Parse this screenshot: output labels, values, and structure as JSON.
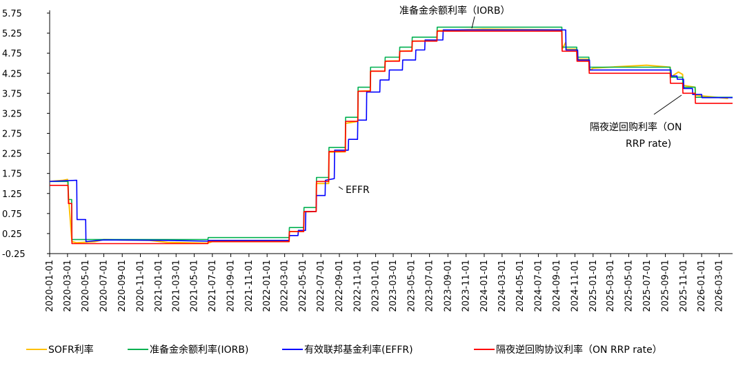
{
  "chart_data": {
    "type": "line",
    "title": "",
    "xlabel": "",
    "ylabel": "",
    "ylim": [
      -0.25,
      5.75
    ],
    "yticks": [
      "5.75",
      "5.25",
      "4.75",
      "4.25",
      "3.75",
      "3.25",
      "2.75",
      "2.25",
      "1.75",
      "1.25",
      "0.75",
      "0.25",
      "-0.25"
    ],
    "xticks": [
      "2020-01-01",
      "2020-03-01",
      "2020-05-01",
      "2020-07-01",
      "2020-09-01",
      "2020-11-01",
      "2021-01-01",
      "2021-03-01",
      "2021-05-01",
      "2021-07-01",
      "2021-09-01",
      "2021-11-01",
      "2022-01-01",
      "2022-03-01",
      "2022-05-01",
      "2022-07-01",
      "2022-09-01",
      "2022-11-01",
      "2023-01-01",
      "2023-03-01",
      "2023-05-01",
      "2023-07-01",
      "2023-09-01",
      "2023-11-01",
      "2024-01-01",
      "2024-03-01",
      "2024-05-01",
      "2024-07-01",
      "2024-09-01",
      "2024-11-01",
      "2025-01-01",
      "2025-03-01",
      "2025-05-01",
      "2025-07-01",
      "2025-09-01",
      "2025-11-01",
      "2026-01-01",
      "2026-03-01"
    ],
    "x_range": [
      "2020-01-01",
      "2026-04-15"
    ],
    "grid": false,
    "legend_position": "bottom",
    "annotations": [
      {
        "text": "准备金余额利率（IORB）",
        "series": "IORB",
        "x": "2023-10-01",
        "y": 5.4
      },
      {
        "text": "EFFR",
        "series": "EFFR",
        "x": "2022-09-01",
        "y": 1.6
      },
      {
        "text": "隔夜逆回购利率（ON",
        "series": "ON RRP",
        "x": "2025-11-01",
        "y": 3.75
      },
      {
        "text": "RRP rate)",
        "series": "ON RRP",
        "x": "",
        "y": null
      }
    ],
    "series": [
      {
        "key": "SOFR",
        "name": "SOFR利率",
        "color": "#ffc000",
        "points": [
          [
            "2020-01-01",
            1.55
          ],
          [
            "2020-02-15",
            1.58
          ],
          [
            "2020-03-01",
            1.6
          ],
          [
            "2020-03-05",
            1.1
          ],
          [
            "2020-03-16",
            0.05
          ],
          [
            "2020-04-01",
            0.02
          ],
          [
            "2020-06-01",
            0.05
          ],
          [
            "2020-07-01",
            0.1
          ],
          [
            "2020-09-01",
            0.09
          ],
          [
            "2020-12-01",
            0.08
          ],
          [
            "2021-02-01",
            0.03
          ],
          [
            "2021-06-15",
            0.01
          ],
          [
            "2021-07-01",
            0.05
          ],
          [
            "2022-03-16",
            0.05
          ],
          [
            "2022-03-17",
            0.3
          ],
          [
            "2022-05-04",
            0.3
          ],
          [
            "2022-05-05",
            0.79
          ],
          [
            "2022-06-15",
            0.8
          ],
          [
            "2022-06-16",
            1.5
          ],
          [
            "2022-07-27",
            1.5
          ],
          [
            "2022-07-28",
            2.28
          ],
          [
            "2022-09-21",
            2.29
          ],
          [
            "2022-09-22",
            3.0
          ],
          [
            "2022-11-02",
            3.05
          ],
          [
            "2022-11-03",
            3.8
          ],
          [
            "2022-12-14",
            3.81
          ],
          [
            "2022-12-15",
            4.3
          ],
          [
            "2023-02-01",
            4.3
          ],
          [
            "2023-02-02",
            4.55
          ],
          [
            "2023-03-22",
            4.56
          ],
          [
            "2023-03-23",
            4.8
          ],
          [
            "2023-05-03",
            4.81
          ],
          [
            "2023-05-04",
            5.05
          ],
          [
            "2023-07-26",
            5.06
          ],
          [
            "2023-07-27",
            5.31
          ],
          [
            "2023-12-29",
            5.35
          ],
          [
            "2024-09-18",
            5.33
          ],
          [
            "2024-09-19",
            4.85
          ],
          [
            "2024-10-01",
            5.02
          ],
          [
            "2024-10-03",
            4.85
          ],
          [
            "2024-11-07",
            4.85
          ],
          [
            "2024-11-08",
            4.6
          ],
          [
            "2024-12-18",
            4.6
          ],
          [
            "2024-12-19",
            4.32
          ],
          [
            "2025-01-02",
            4.38
          ],
          [
            "2025-06-30",
            4.45
          ],
          [
            "2025-09-17",
            4.4
          ],
          [
            "2025-09-18",
            4.15
          ],
          [
            "2025-10-15",
            4.28
          ],
          [
            "2025-10-29",
            4.22
          ],
          [
            "2025-10-30",
            3.95
          ],
          [
            "2025-12-10",
            3.9
          ],
          [
            "2025-12-11",
            3.7
          ],
          [
            "2026-03-31",
            3.62
          ]
        ]
      },
      {
        "key": "IORB",
        "name": "准备金余额利率(IORB)",
        "color": "#00b050",
        "points": [
          [
            "2020-01-01",
            1.55
          ],
          [
            "2020-03-03",
            1.55
          ],
          [
            "2020-03-04",
            1.1
          ],
          [
            "2020-03-15",
            1.1
          ],
          [
            "2020-03-16",
            0.1
          ],
          [
            "2021-06-16",
            0.1
          ],
          [
            "2021-06-17",
            0.15
          ],
          [
            "2022-03-16",
            0.15
          ],
          [
            "2022-03-17",
            0.4
          ],
          [
            "2022-05-04",
            0.4
          ],
          [
            "2022-05-05",
            0.9
          ],
          [
            "2022-06-15",
            0.9
          ],
          [
            "2022-06-16",
            1.65
          ],
          [
            "2022-07-27",
            1.65
          ],
          [
            "2022-07-28",
            2.4
          ],
          [
            "2022-09-21",
            2.4
          ],
          [
            "2022-09-22",
            3.15
          ],
          [
            "2022-11-02",
            3.15
          ],
          [
            "2022-11-03",
            3.9
          ],
          [
            "2022-12-14",
            3.9
          ],
          [
            "2022-12-15",
            4.4
          ],
          [
            "2023-02-01",
            4.4
          ],
          [
            "2023-02-02",
            4.65
          ],
          [
            "2023-03-22",
            4.65
          ],
          [
            "2023-03-23",
            4.9
          ],
          [
            "2023-05-03",
            4.9
          ],
          [
            "2023-05-04",
            5.15
          ],
          [
            "2023-07-26",
            5.15
          ],
          [
            "2023-07-27",
            5.4
          ],
          [
            "2024-09-18",
            5.4
          ],
          [
            "2024-09-19",
            4.9
          ],
          [
            "2024-11-07",
            4.9
          ],
          [
            "2024-11-08",
            4.65
          ],
          [
            "2024-12-18",
            4.65
          ],
          [
            "2024-12-19",
            4.4
          ],
          [
            "2025-09-17",
            4.4
          ],
          [
            "2025-09-18",
            4.15
          ],
          [
            "2025-10-29",
            4.15
          ],
          [
            "2025-10-30",
            3.9
          ],
          [
            "2025-12-10",
            3.9
          ],
          [
            "2025-12-11",
            3.65
          ],
          [
            "2026-04-15",
            3.65
          ]
        ]
      },
      {
        "key": "EFFR",
        "name": "有效联邦基金利率(EFFR)",
        "color": "#0000ff",
        "points": [
          [
            "2020-01-01",
            1.55
          ],
          [
            "2020-04-01",
            1.58
          ],
          [
            "2020-04-02",
            0.6
          ],
          [
            "2020-05-01",
            0.6
          ],
          [
            "2020-05-02",
            0.05
          ],
          [
            "2020-07-01",
            0.09
          ],
          [
            "2021-02-01",
            0.08
          ],
          [
            "2021-06-16",
            0.06
          ],
          [
            "2021-06-17",
            0.08
          ],
          [
            "2022-03-16",
            0.08
          ],
          [
            "2022-03-17",
            0.2
          ],
          [
            "2022-04-15",
            0.2
          ],
          [
            "2022-04-16",
            0.33
          ],
          [
            "2022-05-10",
            0.33
          ],
          [
            "2022-05-11",
            0.8
          ],
          [
            "2022-06-15",
            0.8
          ],
          [
            "2022-06-16",
            1.2
          ],
          [
            "2022-07-15",
            1.2
          ],
          [
            "2022-07-16",
            1.58
          ],
          [
            "2022-08-15",
            1.62
          ],
          [
            "2022-08-16",
            2.33
          ],
          [
            "2022-10-01",
            2.33
          ],
          [
            "2022-10-02",
            2.6
          ],
          [
            "2022-11-01",
            2.6
          ],
          [
            "2022-11-02",
            3.08
          ],
          [
            "2022-12-01",
            3.08
          ],
          [
            "2022-12-02",
            3.78
          ],
          [
            "2023-01-15",
            3.78
          ],
          [
            "2023-01-16",
            4.08
          ],
          [
            "2023-02-15",
            4.08
          ],
          [
            "2023-02-16",
            4.33
          ],
          [
            "2023-04-01",
            4.33
          ],
          [
            "2023-04-02",
            4.58
          ],
          [
            "2023-05-15",
            4.58
          ],
          [
            "2023-05-16",
            4.83
          ],
          [
            "2023-06-15",
            4.83
          ],
          [
            "2023-06-16",
            5.08
          ],
          [
            "2023-08-15",
            5.08
          ],
          [
            "2023-08-16",
            5.33
          ],
          [
            "2024-10-01",
            5.33
          ],
          [
            "2024-10-02",
            4.83
          ],
          [
            "2024-11-10",
            4.83
          ],
          [
            "2024-11-11",
            4.58
          ],
          [
            "2024-12-20",
            4.58
          ],
          [
            "2024-12-21",
            4.33
          ],
          [
            "2025-09-20",
            4.33
          ],
          [
            "2025-09-21",
            4.18
          ],
          [
            "2025-10-10",
            4.18
          ],
          [
            "2025-10-11",
            4.1
          ],
          [
            "2025-11-01",
            4.1
          ],
          [
            "2025-11-02",
            3.87
          ],
          [
            "2025-12-01",
            3.87
          ],
          [
            "2025-12-02",
            3.72
          ],
          [
            "2026-01-01",
            3.72
          ],
          [
            "2026-01-02",
            3.64
          ],
          [
            "2026-04-15",
            3.64
          ]
        ]
      },
      {
        "key": "RRP",
        "name": "隔夜逆回购协议利率（ON RRP rate）",
        "color": "#ff0000",
        "points": [
          [
            "2020-01-01",
            1.45
          ],
          [
            "2020-03-03",
            1.45
          ],
          [
            "2020-03-04",
            1.0
          ],
          [
            "2020-03-15",
            1.0
          ],
          [
            "2020-03-16",
            0.0
          ],
          [
            "2021-06-16",
            0.0
          ],
          [
            "2021-06-17",
            0.05
          ],
          [
            "2022-03-16",
            0.05
          ],
          [
            "2022-03-17",
            0.3
          ],
          [
            "2022-05-04",
            0.3
          ],
          [
            "2022-05-05",
            0.8
          ],
          [
            "2022-06-15",
            0.8
          ],
          [
            "2022-06-16",
            1.55
          ],
          [
            "2022-07-27",
            1.55
          ],
          [
            "2022-07-28",
            2.3
          ],
          [
            "2022-09-21",
            2.3
          ],
          [
            "2022-09-22",
            3.05
          ],
          [
            "2022-11-02",
            3.05
          ],
          [
            "2022-11-03",
            3.8
          ],
          [
            "2022-12-14",
            3.8
          ],
          [
            "2022-12-15",
            4.3
          ],
          [
            "2023-02-01",
            4.3
          ],
          [
            "2023-02-02",
            4.55
          ],
          [
            "2023-03-22",
            4.55
          ],
          [
            "2023-03-23",
            4.8
          ],
          [
            "2023-05-03",
            4.8
          ],
          [
            "2023-05-04",
            5.05
          ],
          [
            "2023-07-26",
            5.05
          ],
          [
            "2023-07-27",
            5.3
          ],
          [
            "2024-09-18",
            5.3
          ],
          [
            "2024-09-19",
            4.8
          ],
          [
            "2024-11-07",
            4.8
          ],
          [
            "2024-11-08",
            4.55
          ],
          [
            "2024-12-18",
            4.55
          ],
          [
            "2024-12-19",
            4.25
          ],
          [
            "2025-09-17",
            4.25
          ],
          [
            "2025-09-18",
            4.0
          ],
          [
            "2025-10-29",
            4.0
          ],
          [
            "2025-10-30",
            3.75
          ],
          [
            "2025-12-10",
            3.75
          ],
          [
            "2025-12-11",
            3.5
          ],
          [
            "2026-04-15",
            3.5
          ]
        ]
      }
    ]
  }
}
